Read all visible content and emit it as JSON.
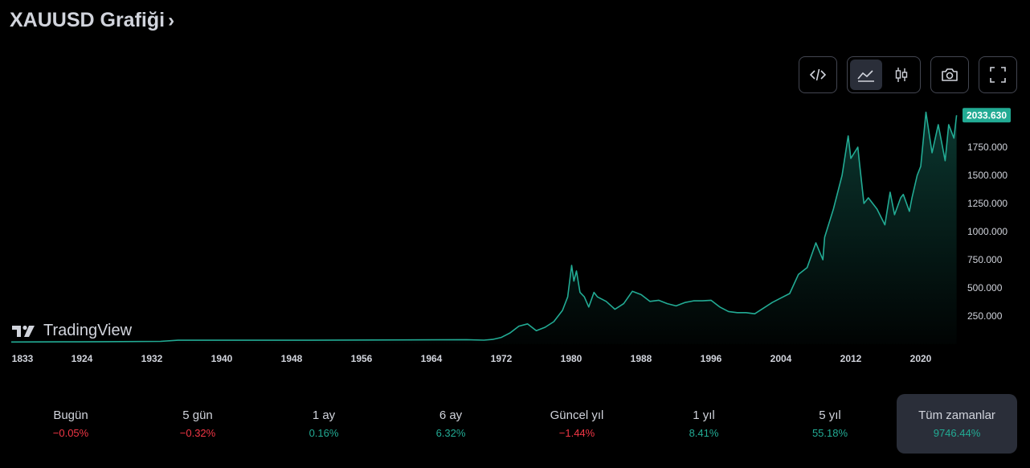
{
  "header": {
    "title": "XAUUSD Grafiği",
    "chevron": "›"
  },
  "toolbar": {
    "embed_icon": "code-embed-icon",
    "area_icon": "area-chart-icon",
    "candles_icon": "candlestick-icon",
    "snapshot_icon": "camera-icon",
    "fullscreen_icon": "fullscreen-icon"
  },
  "brand": {
    "name": "TradingView",
    "logo_icon": "tradingview-logo-icon"
  },
  "colors": {
    "line": "#22ab94",
    "positive": "#22ab94",
    "negative": "#f23645",
    "price_tag_bg": "#22ab94"
  },
  "chart_data": {
    "type": "area",
    "y_ticks": [
      "250.000",
      "500.000",
      "750.000",
      "1000.000",
      "1250.000",
      "1500.000",
      "1750.000"
    ],
    "y_tick_values": [
      250,
      500,
      750,
      1000,
      1250,
      1500,
      1750
    ],
    "x_ticks": [
      "1833",
      "1924",
      "1932",
      "1940",
      "1948",
      "1956",
      "1964",
      "1972",
      "1980",
      "1988",
      "1996",
      "2004",
      "2012",
      "2020"
    ],
    "last_price_label": "2033.630",
    "last_price": 2033.63,
    "ylim": [
      0,
      2100
    ],
    "series": [
      {
        "points": [
          [
            1833,
            19
          ],
          [
            1900,
            21
          ],
          [
            1920,
            21
          ],
          [
            1933,
            25
          ],
          [
            1935,
            35
          ],
          [
            1950,
            35
          ],
          [
            1968,
            40
          ],
          [
            1970,
            36
          ],
          [
            1971,
            42
          ],
          [
            1972,
            60
          ],
          [
            1973,
            100
          ],
          [
            1974,
            160
          ],
          [
            1975,
            180
          ],
          [
            1976,
            120
          ],
          [
            1977,
            150
          ],
          [
            1978,
            200
          ],
          [
            1979,
            300
          ],
          [
            1979.6,
            420
          ],
          [
            1980.05,
            700
          ],
          [
            1980.3,
            560
          ],
          [
            1980.6,
            650
          ],
          [
            1981,
            460
          ],
          [
            1981.5,
            420
          ],
          [
            1982,
            330
          ],
          [
            1982.6,
            460
          ],
          [
            1983,
            420
          ],
          [
            1984,
            380
          ],
          [
            1985,
            310
          ],
          [
            1986,
            360
          ],
          [
            1987,
            470
          ],
          [
            1988,
            440
          ],
          [
            1989,
            380
          ],
          [
            1990,
            390
          ],
          [
            1991,
            360
          ],
          [
            1992,
            340
          ],
          [
            1993,
            370
          ],
          [
            1994,
            385
          ],
          [
            1995,
            385
          ],
          [
            1996,
            390
          ],
          [
            1997,
            330
          ],
          [
            1998,
            290
          ],
          [
            1999,
            280
          ],
          [
            2000,
            280
          ],
          [
            2001,
            270
          ],
          [
            2002,
            320
          ],
          [
            2003,
            370
          ],
          [
            2004,
            410
          ],
          [
            2005,
            450
          ],
          [
            2006,
            620
          ],
          [
            2007,
            680
          ],
          [
            2008,
            900
          ],
          [
            2008.8,
            750
          ],
          [
            2009,
            950
          ],
          [
            2010,
            1200
          ],
          [
            2011,
            1500
          ],
          [
            2011.7,
            1850
          ],
          [
            2012,
            1650
          ],
          [
            2012.8,
            1750
          ],
          [
            2013,
            1600
          ],
          [
            2013.5,
            1250
          ],
          [
            2014,
            1300
          ],
          [
            2014.5,
            1250
          ],
          [
            2015,
            1200
          ],
          [
            2015.9,
            1060
          ],
          [
            2016.5,
            1350
          ],
          [
            2017,
            1150
          ],
          [
            2017.7,
            1300
          ],
          [
            2018,
            1330
          ],
          [
            2018.7,
            1180
          ],
          [
            2019,
            1300
          ],
          [
            2019.6,
            1500
          ],
          [
            2020,
            1580
          ],
          [
            2020.6,
            2060
          ],
          [
            2021,
            1850
          ],
          [
            2021.3,
            1700
          ],
          [
            2022,
            1950
          ],
          [
            2022.8,
            1630
          ],
          [
            2023.2,
            1950
          ],
          [
            2023.8,
            1830
          ],
          [
            2024.1,
            2033.63
          ]
        ]
      }
    ]
  },
  "periods": [
    {
      "label": "Bugün",
      "value": "−0.05%",
      "sign": "neg"
    },
    {
      "label": "5 gün",
      "value": "−0.32%",
      "sign": "neg"
    },
    {
      "label": "1 ay",
      "value": "0.16%",
      "sign": "pos"
    },
    {
      "label": "6 ay",
      "value": "6.32%",
      "sign": "pos"
    },
    {
      "label": "Güncel yıl",
      "value": "−1.44%",
      "sign": "neg"
    },
    {
      "label": "1 yıl",
      "value": "8.41%",
      "sign": "pos"
    },
    {
      "label": "5 yıl",
      "value": "55.18%",
      "sign": "pos"
    },
    {
      "label": "Tüm zamanlar",
      "value": "9746.44%",
      "sign": "pos",
      "active": true
    }
  ]
}
